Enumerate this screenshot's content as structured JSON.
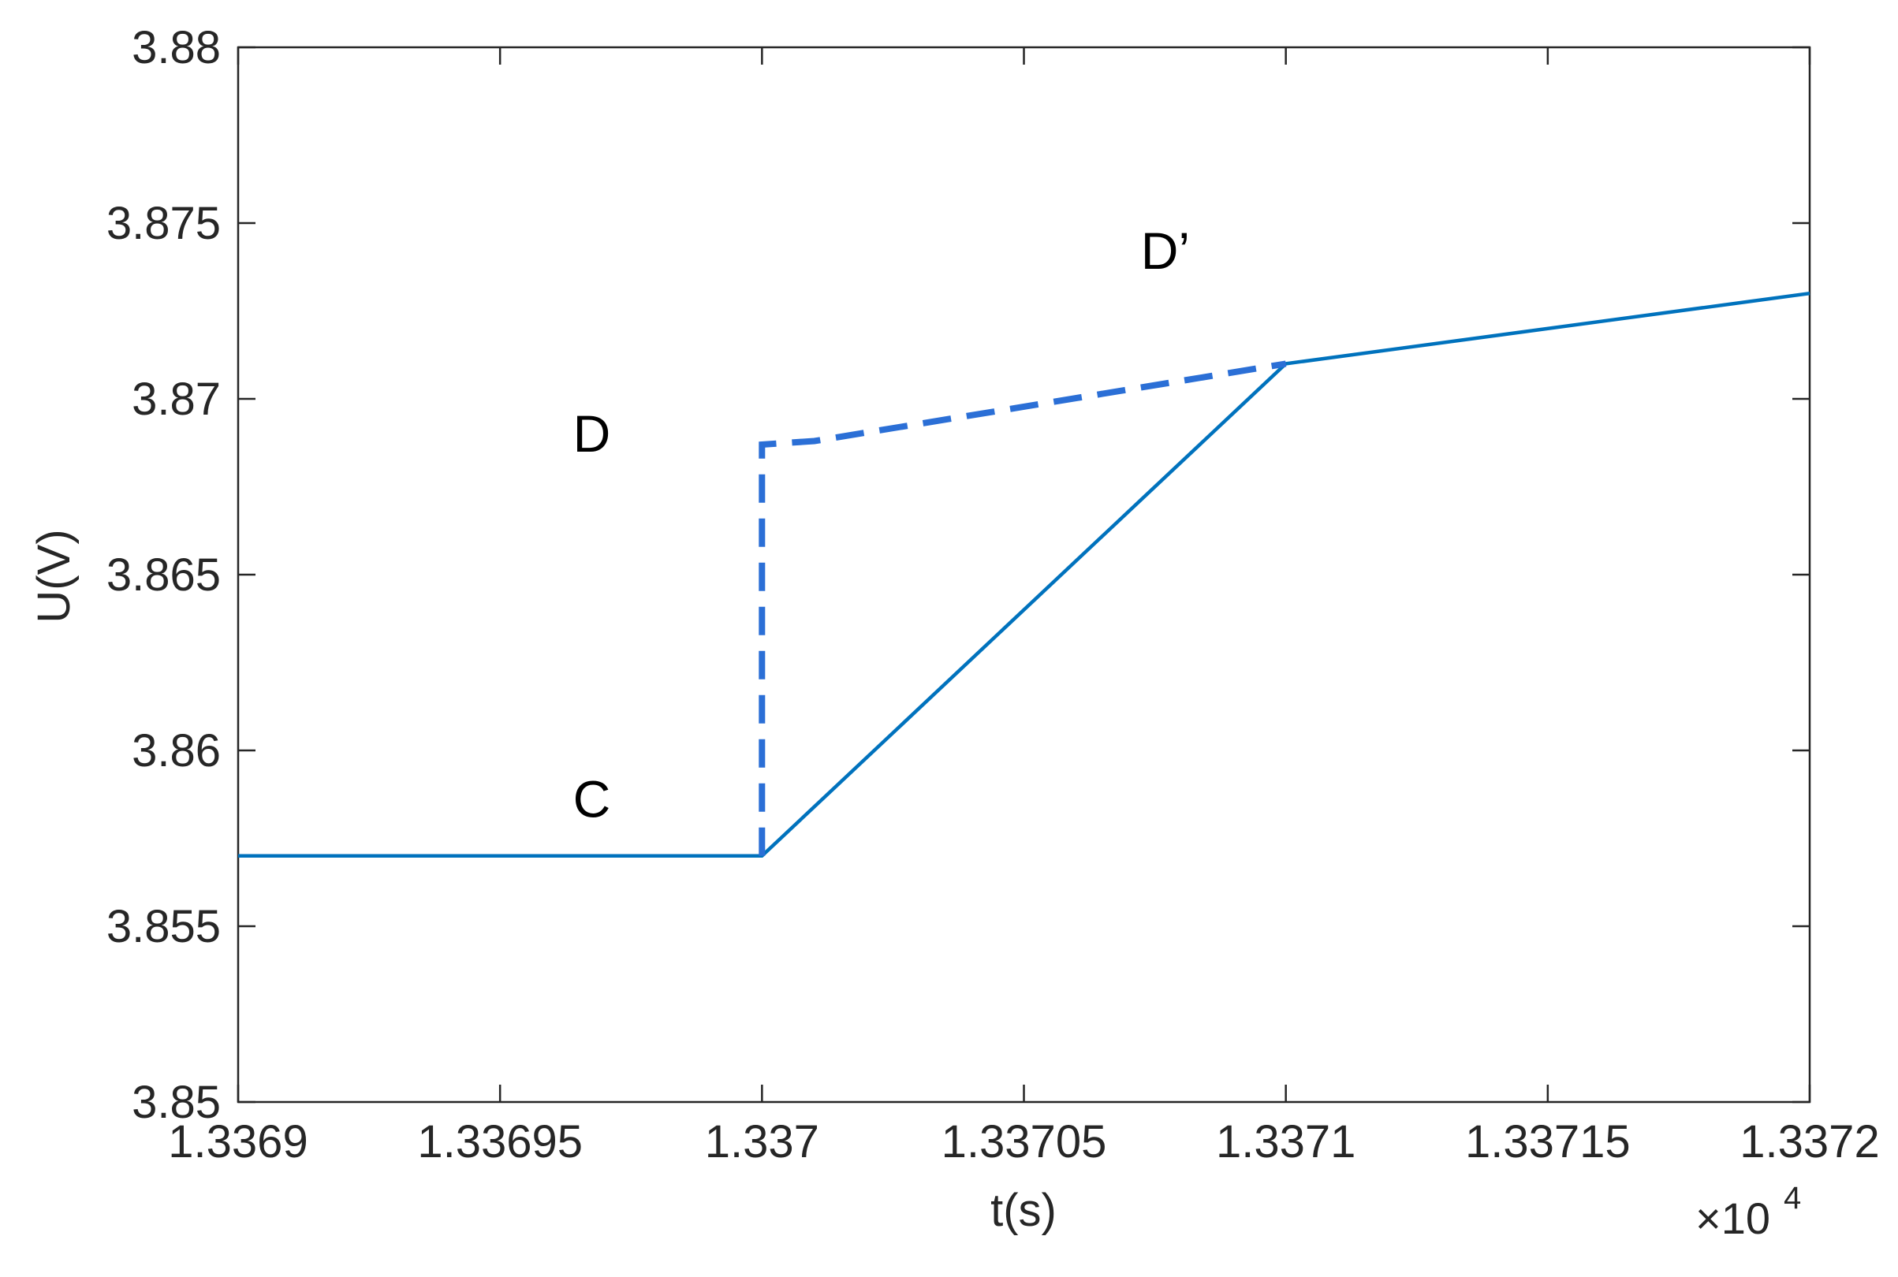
{
  "chart_data": {
    "type": "line",
    "xlabel": "t(s)",
    "ylabel": "U(V)",
    "x_multiplier": {
      "base": "×10",
      "exponent": "4"
    },
    "xlim": [
      1.3369,
      1.3372
    ],
    "ylim": [
      3.85,
      3.88
    ],
    "x_ticks": [
      1.3369,
      1.33695,
      1.337,
      1.33705,
      1.3371,
      1.33715,
      1.3372
    ],
    "x_tick_labels": [
      "1.3369",
      "1.33695",
      "1.337",
      "1.33705",
      "1.3371",
      "1.33715",
      "1.3372"
    ],
    "y_ticks": [
      3.85,
      3.855,
      3.86,
      3.865,
      3.87,
      3.875,
      3.88
    ],
    "y_tick_labels": [
      "3.85",
      "3.855",
      "3.86",
      "3.865",
      "3.87",
      "3.875",
      "3.88"
    ],
    "grid": false,
    "series": [
      {
        "style": "solid",
        "color": "#0072BD",
        "x": [
          1.3369,
          1.337,
          1.3371,
          1.3372
        ],
        "y": [
          3.857,
          3.857,
          3.871,
          3.873
        ]
      },
      {
        "style": "dashed",
        "color": "#2B6FD6",
        "x": [
          1.337,
          1.337,
          1.33701,
          1.3371
        ],
        "y": [
          3.857,
          3.8687,
          3.8688,
          3.871
        ]
      }
    ],
    "annotations": [
      {
        "text": "D",
        "x": 1.3369675,
        "y": 3.8685
      },
      {
        "text": "C",
        "x": 1.3369675,
        "y": 3.8581
      },
      {
        "text": "D’",
        "x": 1.337077,
        "y": 3.8737
      }
    ]
  }
}
